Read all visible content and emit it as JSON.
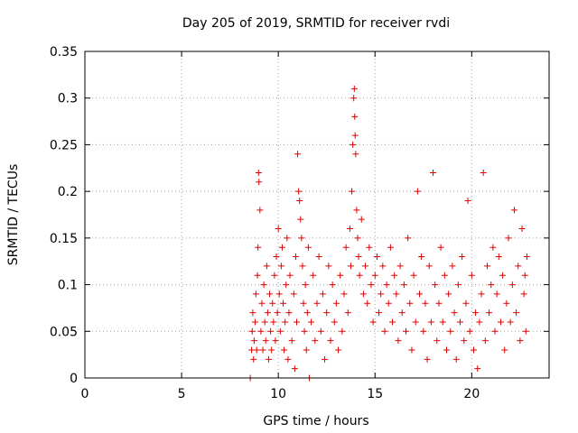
{
  "chart_data": {
    "type": "scatter",
    "title": "Day 205 of 2019, SRMTID for receiver rvdi",
    "xlabel": "GPS time / hours",
    "ylabel": "SRMTID / TECUs",
    "xlim": [
      0,
      24
    ],
    "ylim": [
      0,
      0.35
    ],
    "xticks": [
      "0",
      "5",
      "10",
      "15",
      "20"
    ],
    "yticks": [
      "0",
      "0.05",
      "0.1",
      "0.15",
      "0.2",
      "0.25",
      "0.3",
      "0.35"
    ],
    "grid": true,
    "marker": "plus",
    "colors": {
      "points": "#e00000",
      "grid": "#a0a0a0",
      "axes": "#000000"
    },
    "series": [
      {
        "points": [
          [
            8.55,
            0.0
          ],
          [
            8.62,
            0.03
          ],
          [
            8.65,
            0.05
          ],
          [
            8.68,
            0.07
          ],
          [
            8.72,
            0.02
          ],
          [
            8.75,
            0.04
          ],
          [
            8.8,
            0.06
          ],
          [
            8.84,
            0.09
          ],
          [
            8.88,
            0.03
          ],
          [
            8.92,
            0.11
          ],
          [
            8.95,
            0.14
          ],
          [
            8.98,
            0.22
          ],
          [
            9.0,
            0.21
          ],
          [
            9.05,
            0.18
          ],
          [
            9.1,
            0.05
          ],
          [
            9.15,
            0.08
          ],
          [
            9.2,
            0.03
          ],
          [
            9.25,
            0.1
          ],
          [
            9.3,
            0.06
          ],
          [
            9.35,
            0.04
          ],
          [
            9.4,
            0.12
          ],
          [
            9.45,
            0.07
          ],
          [
            9.5,
            0.02
          ],
          [
            9.55,
            0.09
          ],
          [
            9.6,
            0.05
          ],
          [
            9.65,
            0.03
          ],
          [
            9.7,
            0.08
          ],
          [
            9.75,
            0.06
          ],
          [
            9.8,
            0.11
          ],
          [
            9.85,
            0.04
          ],
          [
            9.9,
            0.13
          ],
          [
            9.95,
            0.07
          ],
          [
            10.0,
            0.16
          ],
          [
            10.05,
            0.09
          ],
          [
            10.1,
            0.05
          ],
          [
            10.15,
            0.12
          ],
          [
            10.2,
            0.14
          ],
          [
            10.25,
            0.08
          ],
          [
            10.3,
            0.03
          ],
          [
            10.35,
            0.06
          ],
          [
            10.4,
            0.1
          ],
          [
            10.45,
            0.15
          ],
          [
            10.5,
            0.02
          ],
          [
            10.55,
            0.07
          ],
          [
            10.6,
            0.11
          ],
          [
            10.7,
            0.04
          ],
          [
            10.8,
            0.09
          ],
          [
            10.85,
            0.01
          ],
          [
            10.9,
            0.13
          ],
          [
            10.95,
            0.06
          ],
          [
            11.0,
            0.24
          ],
          [
            11.05,
            0.2
          ],
          [
            11.1,
            0.19
          ],
          [
            11.15,
            0.17
          ],
          [
            11.2,
            0.15
          ],
          [
            11.25,
            0.12
          ],
          [
            11.3,
            0.08
          ],
          [
            11.35,
            0.05
          ],
          [
            11.4,
            0.1
          ],
          [
            11.45,
            0.03
          ],
          [
            11.5,
            0.07
          ],
          [
            11.55,
            0.14
          ],
          [
            11.6,
            0.0
          ],
          [
            11.7,
            0.06
          ],
          [
            11.8,
            0.11
          ],
          [
            11.9,
            0.04
          ],
          [
            12.0,
            0.08
          ],
          [
            12.1,
            0.13
          ],
          [
            12.2,
            0.05
          ],
          [
            12.3,
            0.09
          ],
          [
            12.4,
            0.02
          ],
          [
            12.5,
            0.07
          ],
          [
            12.6,
            0.12
          ],
          [
            12.7,
            0.04
          ],
          [
            12.8,
            0.1
          ],
          [
            12.9,
            0.06
          ],
          [
            13.0,
            0.08
          ],
          [
            13.1,
            0.03
          ],
          [
            13.2,
            0.11
          ],
          [
            13.3,
            0.05
          ],
          [
            13.4,
            0.09
          ],
          [
            13.5,
            0.14
          ],
          [
            13.6,
            0.07
          ],
          [
            13.7,
            0.16
          ],
          [
            13.75,
            0.12
          ],
          [
            13.8,
            0.2
          ],
          [
            13.85,
            0.25
          ],
          [
            13.9,
            0.3
          ],
          [
            13.93,
            0.31
          ],
          [
            13.95,
            0.28
          ],
          [
            13.97,
            0.26
          ],
          [
            14.0,
            0.24
          ],
          [
            14.05,
            0.18
          ],
          [
            14.1,
            0.15
          ],
          [
            14.15,
            0.13
          ],
          [
            14.2,
            0.11
          ],
          [
            14.3,
            0.17
          ],
          [
            14.4,
            0.09
          ],
          [
            14.5,
            0.12
          ],
          [
            14.6,
            0.08
          ],
          [
            14.7,
            0.14
          ],
          [
            14.8,
            0.1
          ],
          [
            14.9,
            0.06
          ],
          [
            15.0,
            0.11
          ],
          [
            15.1,
            0.13
          ],
          [
            15.2,
            0.07
          ],
          [
            15.3,
            0.09
          ],
          [
            15.4,
            0.12
          ],
          [
            15.5,
            0.05
          ],
          [
            15.6,
            0.1
          ],
          [
            15.7,
            0.08
          ],
          [
            15.8,
            0.14
          ],
          [
            15.9,
            0.06
          ],
          [
            16.0,
            0.11
          ],
          [
            16.1,
            0.09
          ],
          [
            16.2,
            0.04
          ],
          [
            16.3,
            0.12
          ],
          [
            16.4,
            0.07
          ],
          [
            16.5,
            0.1
          ],
          [
            16.6,
            0.05
          ],
          [
            16.7,
            0.15
          ],
          [
            16.8,
            0.08
          ],
          [
            16.9,
            0.03
          ],
          [
            17.0,
            0.11
          ],
          [
            17.1,
            0.06
          ],
          [
            17.2,
            0.2
          ],
          [
            17.3,
            0.09
          ],
          [
            17.4,
            0.13
          ],
          [
            17.5,
            0.05
          ],
          [
            17.6,
            0.08
          ],
          [
            17.7,
            0.02
          ],
          [
            17.8,
            0.12
          ],
          [
            17.9,
            0.06
          ],
          [
            18.0,
            0.22
          ],
          [
            18.1,
            0.1
          ],
          [
            18.2,
            0.04
          ],
          [
            18.3,
            0.08
          ],
          [
            18.4,
            0.14
          ],
          [
            18.5,
            0.06
          ],
          [
            18.6,
            0.11
          ],
          [
            18.7,
            0.03
          ],
          [
            18.8,
            0.09
          ],
          [
            18.9,
            0.05
          ],
          [
            19.0,
            0.12
          ],
          [
            19.1,
            0.07
          ],
          [
            19.2,
            0.02
          ],
          [
            19.3,
            0.1
          ],
          [
            19.4,
            0.06
          ],
          [
            19.5,
            0.13
          ],
          [
            19.6,
            0.04
          ],
          [
            19.7,
            0.08
          ],
          [
            19.8,
            0.19
          ],
          [
            19.9,
            0.05
          ],
          [
            20.0,
            0.11
          ],
          [
            20.1,
            0.03
          ],
          [
            20.2,
            0.07
          ],
          [
            20.3,
            0.01
          ],
          [
            20.4,
            0.06
          ],
          [
            20.5,
            0.09
          ],
          [
            20.6,
            0.22
          ],
          [
            20.7,
            0.04
          ],
          [
            20.8,
            0.12
          ],
          [
            20.9,
            0.07
          ],
          [
            21.0,
            0.1
          ],
          [
            21.1,
            0.14
          ],
          [
            21.2,
            0.05
          ],
          [
            21.3,
            0.09
          ],
          [
            21.4,
            0.13
          ],
          [
            21.5,
            0.06
          ],
          [
            21.6,
            0.11
          ],
          [
            21.7,
            0.03
          ],
          [
            21.8,
            0.08
          ],
          [
            21.9,
            0.15
          ],
          [
            22.0,
            0.06
          ],
          [
            22.1,
            0.1
          ],
          [
            22.2,
            0.18
          ],
          [
            22.3,
            0.07
          ],
          [
            22.4,
            0.12
          ],
          [
            22.5,
            0.04
          ],
          [
            22.6,
            0.16
          ],
          [
            22.7,
            0.09
          ],
          [
            22.75,
            0.11
          ],
          [
            22.8,
            0.05
          ],
          [
            22.85,
            0.13
          ]
        ]
      }
    ]
  }
}
